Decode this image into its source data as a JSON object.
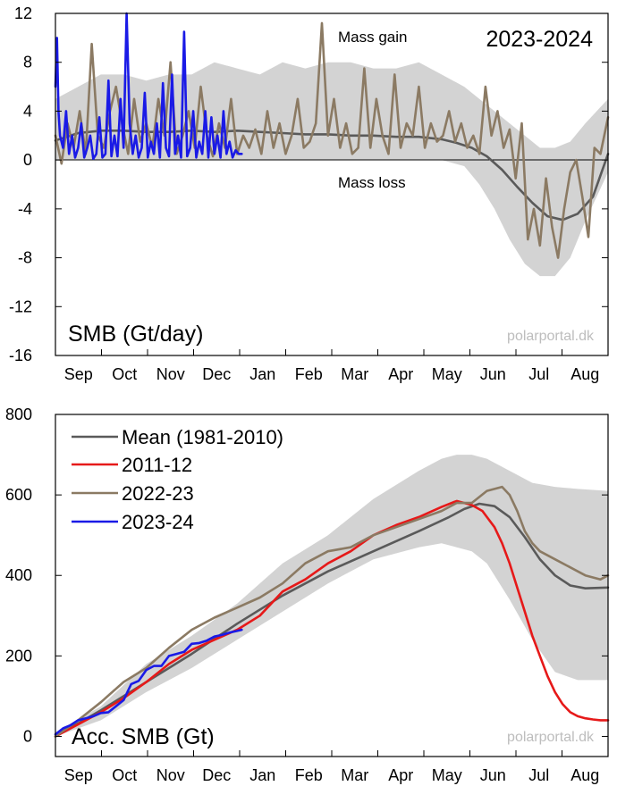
{
  "chart_data": [
    {
      "type": "line",
      "title": "SMB (Gt/day)",
      "season_label": "2023-2024",
      "annotation_gain": "Mass gain",
      "annotation_loss": "Mass loss",
      "watermark": "polarportal.dk",
      "ylim": [
        -16,
        12
      ],
      "yticks": [
        "12",
        "8",
        "4",
        "0",
        "-4",
        "-8",
        "-12",
        "-16"
      ],
      "ytick_values": [
        12,
        8,
        4,
        0,
        -4,
        -8,
        -12,
        -16
      ],
      "xlim": [
        0,
        365
      ],
      "months": [
        "Sep",
        "Oct",
        "Nov",
        "Dec",
        "Jan",
        "Feb",
        "Mar",
        "Apr",
        "May",
        "Jun",
        "Jul",
        "Aug"
      ],
      "band": {
        "name": "range (1981-2010)",
        "color": "#d3d3d3",
        "x": [
          0,
          15,
          30,
          45,
          60,
          75,
          90,
          105,
          120,
          135,
          150,
          165,
          180,
          195,
          210,
          225,
          240,
          255,
          270,
          280,
          290,
          300,
          310,
          320,
          330,
          340,
          350,
          365
        ],
        "upper": [
          5,
          6,
          7,
          7,
          6.5,
          7,
          7,
          8,
          7.5,
          7,
          8,
          7.5,
          8,
          8,
          7.5,
          7.5,
          8,
          7,
          6,
          5,
          4,
          3,
          2,
          1,
          1,
          1.5,
          3,
          5
        ],
        "lower": [
          0,
          0,
          0,
          0,
          0,
          0,
          0,
          0,
          0,
          0,
          0,
          0,
          0,
          0,
          0,
          0,
          0,
          0,
          -0.5,
          -2,
          -4,
          -6.5,
          -8.5,
          -9.5,
          -9.5,
          -8,
          -5,
          -1
        ]
      },
      "series": [
        {
          "name": "Mean (1981-2010)",
          "color": "#5a5a5a",
          "x": [
            0,
            15,
            30,
            45,
            60,
            75,
            90,
            105,
            120,
            135,
            150,
            165,
            180,
            195,
            210,
            225,
            240,
            255,
            265,
            275,
            285,
            295,
            305,
            315,
            325,
            335,
            345,
            355,
            365
          ],
          "values": [
            1.6,
            2.2,
            2.4,
            2.4,
            2.3,
            2.3,
            2.4,
            2.3,
            2.4,
            2.3,
            2.2,
            2.1,
            2.1,
            2.0,
            2.0,
            1.9,
            1.9,
            1.7,
            1.4,
            1.0,
            0.3,
            -0.8,
            -2.2,
            -3.5,
            -4.6,
            -4.9,
            -4.4,
            -3.0,
            0.5
          ]
        },
        {
          "name": "2022-23",
          "color": "#8b7a63",
          "x": [
            0,
            4,
            8,
            12,
            16,
            20,
            24,
            28,
            32,
            36,
            40,
            44,
            48,
            52,
            56,
            60,
            64,
            68,
            72,
            76,
            80,
            84,
            88,
            92,
            96,
            100,
            104,
            108,
            112,
            116,
            120,
            124,
            128,
            132,
            136,
            140,
            144,
            148,
            152,
            156,
            160,
            164,
            168,
            172,
            176,
            180,
            184,
            188,
            192,
            196,
            200,
            204,
            208,
            212,
            216,
            220,
            224,
            228,
            232,
            236,
            240,
            244,
            248,
            252,
            256,
            260,
            264,
            268,
            272,
            276,
            280,
            284,
            288,
            292,
            296,
            300,
            304,
            308,
            312,
            316,
            320,
            324,
            328,
            332,
            336,
            340,
            344,
            348,
            352,
            356,
            360,
            365
          ],
          "values": [
            2,
            -0.3,
            3,
            1,
            4,
            0.5,
            9.5,
            2,
            1,
            4,
            6,
            3,
            0.5,
            5,
            1.5,
            3,
            1,
            5,
            2,
            8,
            0.5,
            2,
            4,
            1,
            6,
            2,
            0.3,
            3,
            1,
            5,
            0.5,
            2,
            1,
            2.5,
            0.5,
            4,
            1,
            3,
            0.5,
            2,
            5,
            1,
            1.5,
            3,
            11.2,
            2,
            5,
            1,
            3,
            0.5,
            1,
            7.5,
            1,
            5,
            2,
            0.5,
            7,
            1,
            3,
            2,
            6,
            1,
            3,
            1.5,
            2,
            4,
            1.5,
            3,
            1,
            2,
            0.5,
            6,
            2,
            4,
            1,
            2.5,
            -1.5,
            3,
            -6.5,
            -4,
            -7,
            -1.5,
            -5.5,
            -8,
            -4,
            -1,
            0,
            -3,
            -6.3,
            1,
            0.5,
            3.5
          ]
        },
        {
          "name": "2023-24",
          "color": "#1a1ae6",
          "x": [
            0,
            1,
            2,
            3,
            5,
            7,
            9,
            11,
            13,
            15,
            17,
            19,
            21,
            23,
            25,
            27,
            29,
            31,
            33,
            35,
            37,
            39,
            41,
            43,
            45,
            47,
            49,
            51,
            53,
            55,
            57,
            59,
            61,
            63,
            65,
            67,
            69,
            71,
            73,
            75,
            77,
            79,
            81,
            83,
            85,
            87,
            89,
            91,
            93,
            95,
            97,
            99,
            101,
            103,
            105,
            107,
            109,
            111,
            113,
            115,
            117,
            119,
            121,
            123
          ],
          "values": [
            6,
            10,
            4,
            2,
            1,
            4,
            0.5,
            2,
            0.2,
            1,
            3,
            0.2,
            1,
            2,
            0.1,
            0.5,
            3.5,
            0.2,
            0.5,
            6.5,
            0.3,
            2,
            0.3,
            5,
            1,
            12,
            3,
            0.5,
            2,
            0.2,
            1,
            5.5,
            0.2,
            1.5,
            0.5,
            3,
            0.2,
            6.3,
            1,
            0.3,
            7,
            0.5,
            2,
            0.2,
            10.5,
            0.3,
            1,
            4,
            0.2,
            1.5,
            0.5,
            4,
            0.2,
            3.5,
            0.5,
            2,
            0.2,
            4,
            0.5,
            1.5,
            0.2,
            0.8,
            0.5,
            0.5
          ]
        }
      ]
    },
    {
      "type": "line",
      "title": "Acc. SMB (Gt)",
      "watermark": "polarportal.dk",
      "ylim": [
        -50,
        800
      ],
      "yticks": [
        "800",
        "600",
        "400",
        "200",
        "0"
      ],
      "ytick_values": [
        800,
        600,
        400,
        200,
        0
      ],
      "xlim": [
        0,
        365
      ],
      "months": [
        "Sep",
        "Oct",
        "Nov",
        "Dec",
        "Jan",
        "Feb",
        "Mar",
        "Apr",
        "May",
        "Jun",
        "Jul",
        "Aug"
      ],
      "band": {
        "name": "range (1981-2010)",
        "color": "#d3d3d3",
        "x": [
          0,
          30,
          60,
          90,
          120,
          150,
          180,
          210,
          240,
          255,
          265,
          275,
          285,
          300,
          315,
          330,
          345,
          365
        ],
        "upper": [
          10,
          75,
          180,
          250,
          330,
          430,
          500,
          590,
          660,
          690,
          700,
          700,
          690,
          660,
          630,
          620,
          615,
          610
        ],
        "lower": [
          0,
          40,
          110,
          170,
          240,
          310,
          380,
          440,
          470,
          480,
          470,
          460,
          430,
          340,
          240,
          160,
          140,
          140
        ]
      },
      "series": [
        {
          "name": "Mean (1981-2010)",
          "color": "#5a5a5a",
          "x": [
            0,
            30,
            60,
            90,
            120,
            150,
            180,
            210,
            240,
            260,
            270,
            280,
            290,
            300,
            310,
            320,
            330,
            340,
            350,
            365
          ],
          "values": [
            0,
            65,
            135,
            205,
            280,
            350,
            410,
            460,
            510,
            545,
            565,
            578,
            572,
            545,
            495,
            440,
            400,
            375,
            368,
            370
          ]
        },
        {
          "name": "2011-12",
          "color": "#e61919",
          "x": [
            0,
            15,
            30,
            45,
            60,
            75,
            90,
            105,
            120,
            135,
            150,
            165,
            180,
            195,
            210,
            225,
            240,
            255,
            265,
            275,
            282,
            290,
            295,
            300,
            305,
            310,
            315,
            320,
            325,
            330,
            335,
            340,
            345,
            350,
            355,
            360,
            365
          ],
          "values": [
            0,
            30,
            60,
            95,
            135,
            180,
            215,
            240,
            265,
            300,
            360,
            390,
            430,
            460,
            500,
            525,
            545,
            570,
            585,
            575,
            560,
            520,
            480,
            430,
            370,
            310,
            250,
            200,
            150,
            110,
            80,
            60,
            50,
            45,
            42,
            40,
            40
          ]
        },
        {
          "name": "2022-23",
          "color": "#8b7a63",
          "x": [
            0,
            15,
            30,
            45,
            60,
            75,
            90,
            105,
            120,
            135,
            150,
            165,
            180,
            195,
            210,
            225,
            240,
            255,
            265,
            275,
            285,
            295,
            300,
            305,
            310,
            315,
            320,
            330,
            340,
            350,
            360,
            365
          ],
          "values": [
            0,
            40,
            85,
            135,
            170,
            220,
            265,
            295,
            320,
            345,
            380,
            430,
            460,
            470,
            500,
            520,
            540,
            560,
            580,
            580,
            610,
            620,
            600,
            560,
            510,
            480,
            460,
            440,
            420,
            400,
            390,
            400
          ]
        },
        {
          "name": "2023-24",
          "color": "#1a1ae6",
          "x": [
            0,
            5,
            10,
            15,
            20,
            25,
            30,
            35,
            40,
            45,
            50,
            55,
            60,
            65,
            70,
            75,
            80,
            85,
            90,
            95,
            100,
            105,
            110,
            115,
            120,
            123
          ],
          "values": [
            5,
            20,
            28,
            40,
            45,
            50,
            58,
            60,
            75,
            90,
            130,
            138,
            165,
            175,
            175,
            200,
            205,
            210,
            230,
            232,
            238,
            248,
            252,
            258,
            262,
            265
          ]
        }
      ],
      "legend": [
        {
          "label": "Mean (1981-2010)",
          "color": "#5a5a5a"
        },
        {
          "label": "2011-12",
          "color": "#e61919"
        },
        {
          "label": "2022-23",
          "color": "#8b7a63"
        },
        {
          "label": "2023-24",
          "color": "#1a1ae6"
        }
      ]
    }
  ]
}
